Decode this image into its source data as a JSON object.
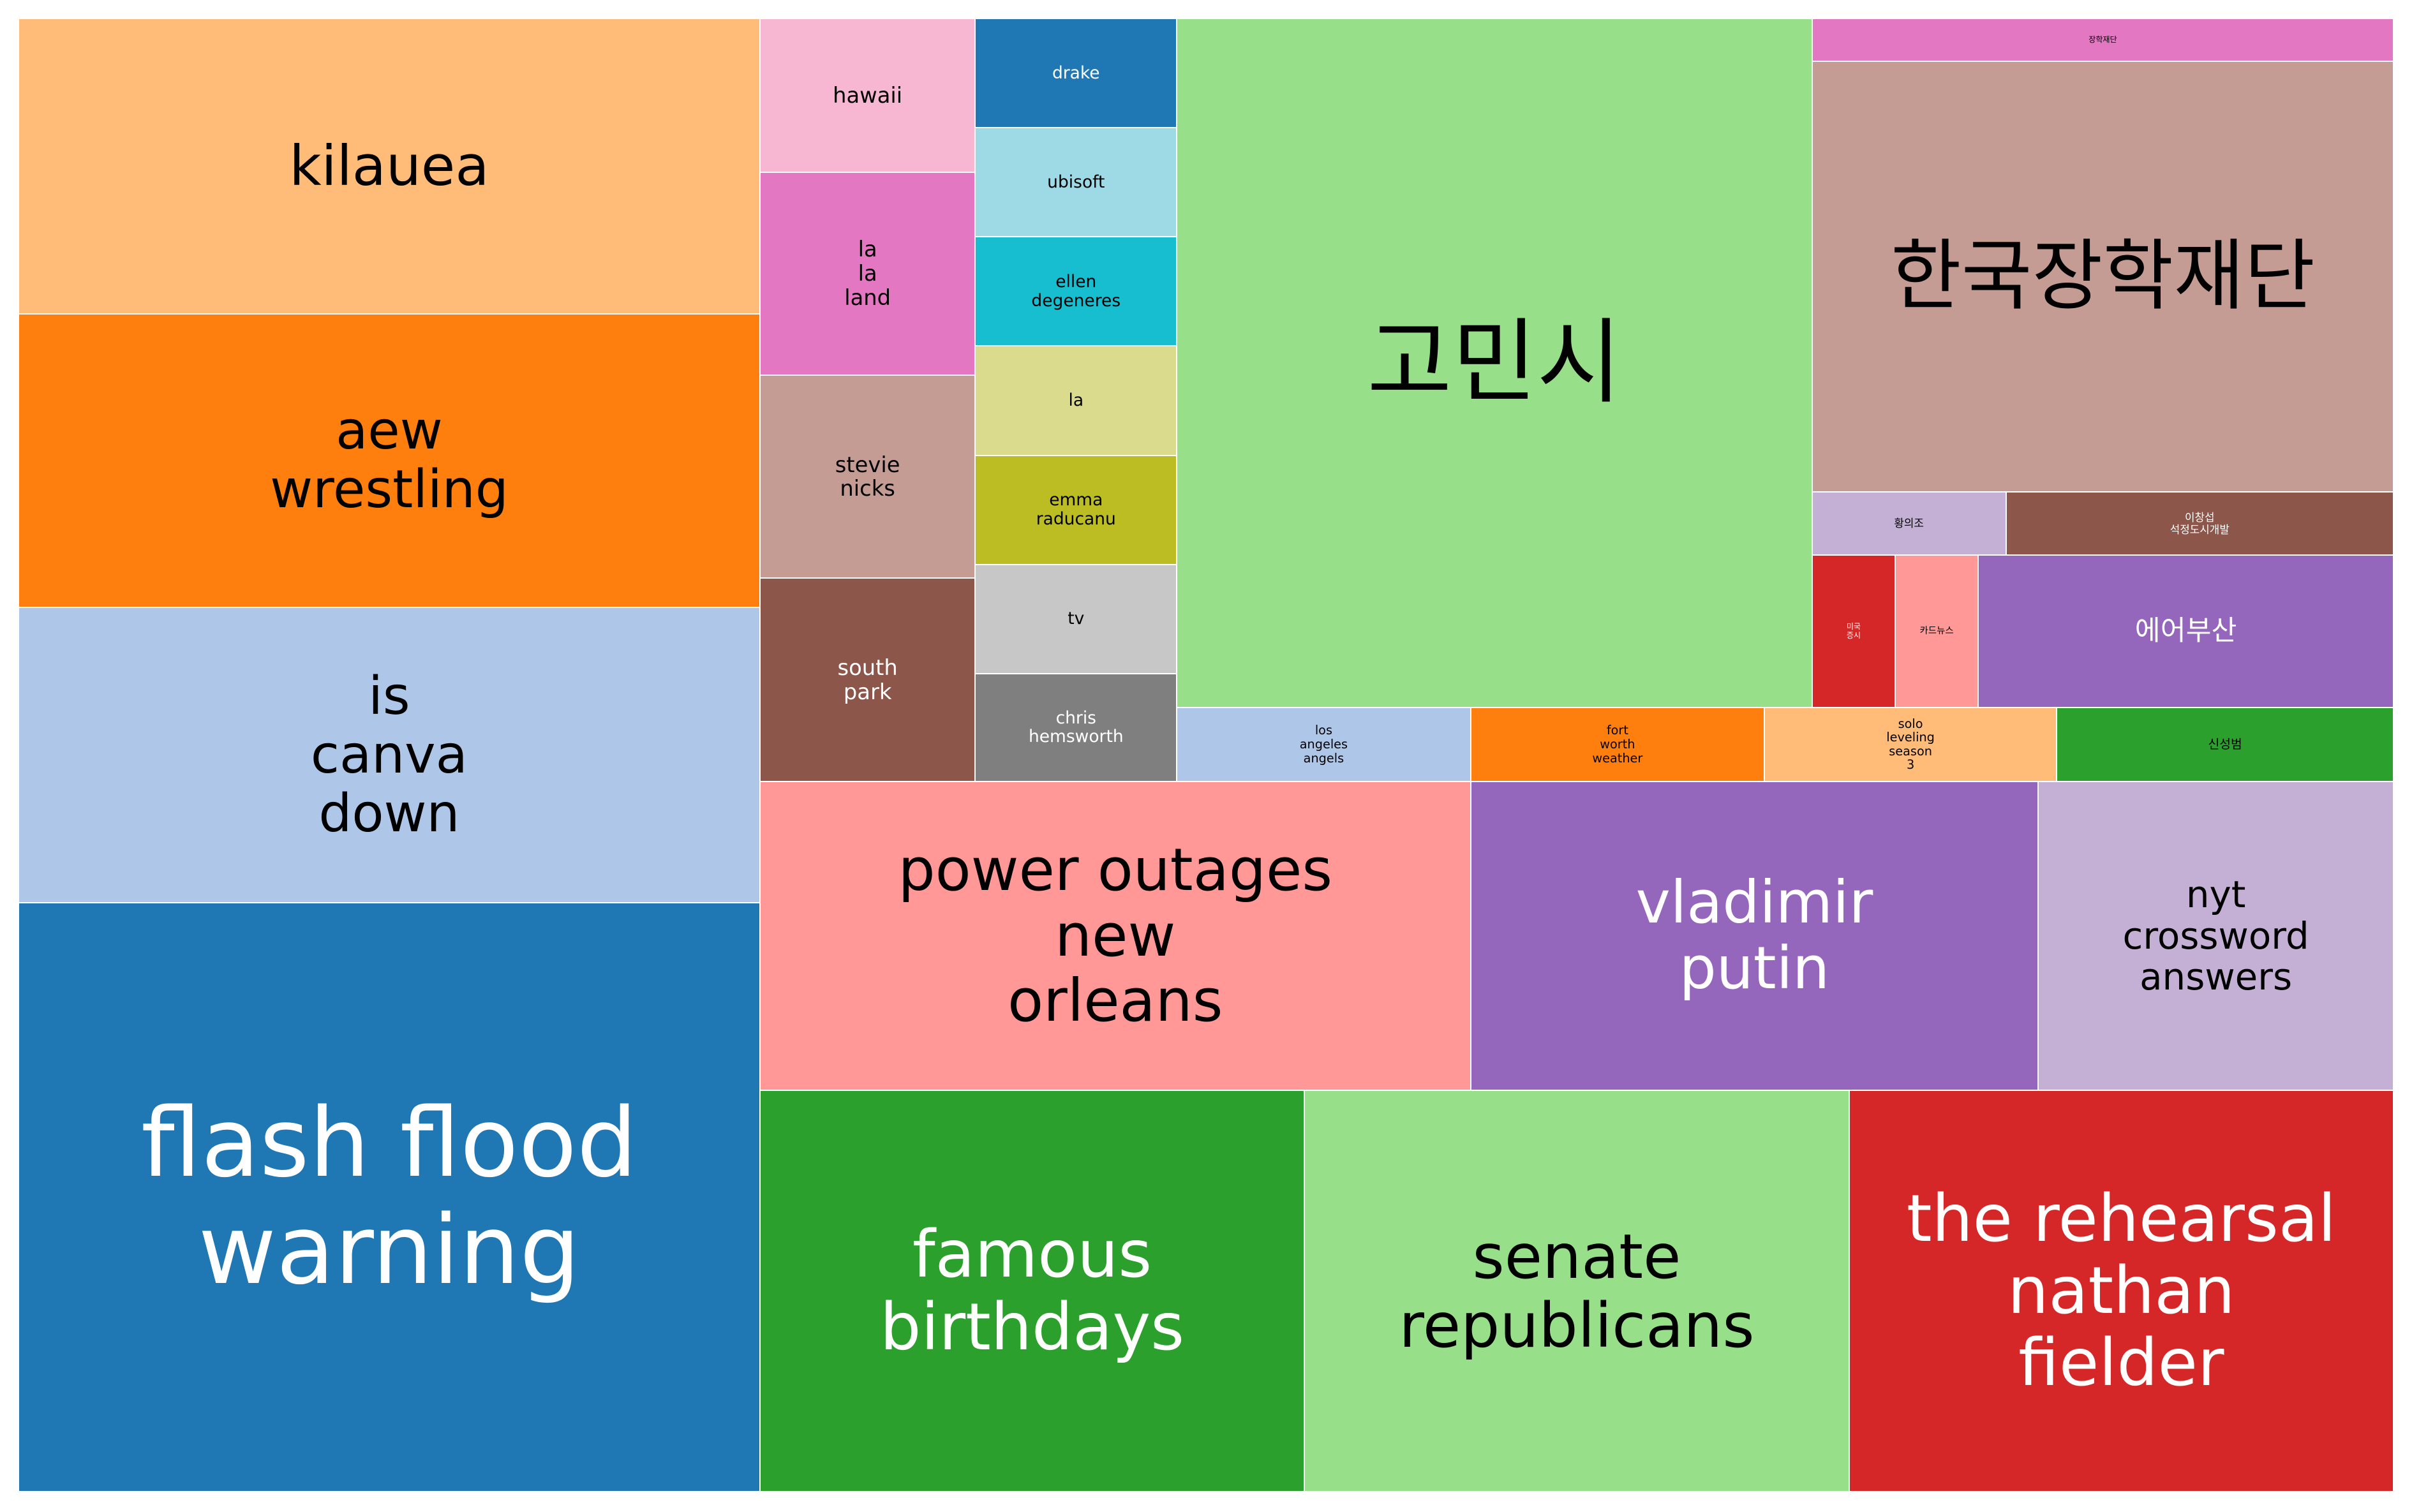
{
  "chart_data": {
    "type": "treemap",
    "items": [
      {
        "label": "kilauea",
        "color": "#ffbb78"
      },
      {
        "label": "aew\nwrestling",
        "color": "#ff7f0e"
      },
      {
        "label": "is\ncanva\ndown",
        "color": "#aec7e8"
      },
      {
        "label": "flash flood\nwarning",
        "color": "#1f77b4"
      },
      {
        "label": "hawaii",
        "color": "#f7b6d2"
      },
      {
        "label": "la\nla\nland",
        "color": "#e377c2"
      },
      {
        "label": "stevie\nnicks",
        "color": "#c49c94"
      },
      {
        "label": "south\npark",
        "color": "#8c564b"
      },
      {
        "label": "drake",
        "color": "#1f77b4"
      },
      {
        "label": "ubisoft",
        "color": "#9edae5"
      },
      {
        "label": "ellen\ndegeneres",
        "color": "#17becf"
      },
      {
        "label": "la",
        "color": "#dbdb8d"
      },
      {
        "label": "emma\nraducanu",
        "color": "#bcbd22"
      },
      {
        "label": "tv",
        "color": "#c7c7c7"
      },
      {
        "label": "chris\nhemsworth",
        "color": "#7f7f7f"
      },
      {
        "label": "고민시",
        "color": "#98df8a"
      },
      {
        "label": "장학재단",
        "color": "#e377c2"
      },
      {
        "label": "한국장학재단",
        "color": "#c49c94"
      },
      {
        "label": "황의조",
        "color": "#c5b0d5"
      },
      {
        "label": "이창섭\n석정도시개발",
        "color": "#8c564b"
      },
      {
        "label": "미국\n증시",
        "color": "#d62728"
      },
      {
        "label": "카드뉴스",
        "color": "#ff9896"
      },
      {
        "label": "에어부산",
        "color": "#9467bd"
      },
      {
        "label": "los\nangeles\nangels",
        "color": "#aec7e8"
      },
      {
        "label": "fort\nworth\nweather",
        "color": "#ff7f0e"
      },
      {
        "label": "solo\nleveling\nseason\n3",
        "color": "#ffbb78"
      },
      {
        "label": "신성범",
        "color": "#2ca02c"
      },
      {
        "label": "power outages\nnew\norleans",
        "color": "#ff9896"
      },
      {
        "label": "vladimir\nputin",
        "color": "#9467bd"
      },
      {
        "label": "nyt\ncrossword\nanswers",
        "color": "#c5b0d5"
      },
      {
        "label": "famous\nbirthdays",
        "color": "#2ca02c"
      },
      {
        "label": "senate\nrepublicans",
        "color": "#98df8a"
      },
      {
        "label": "the rehearsal\nnathan\nfielder",
        "color": "#d62728"
      }
    ]
  }
}
